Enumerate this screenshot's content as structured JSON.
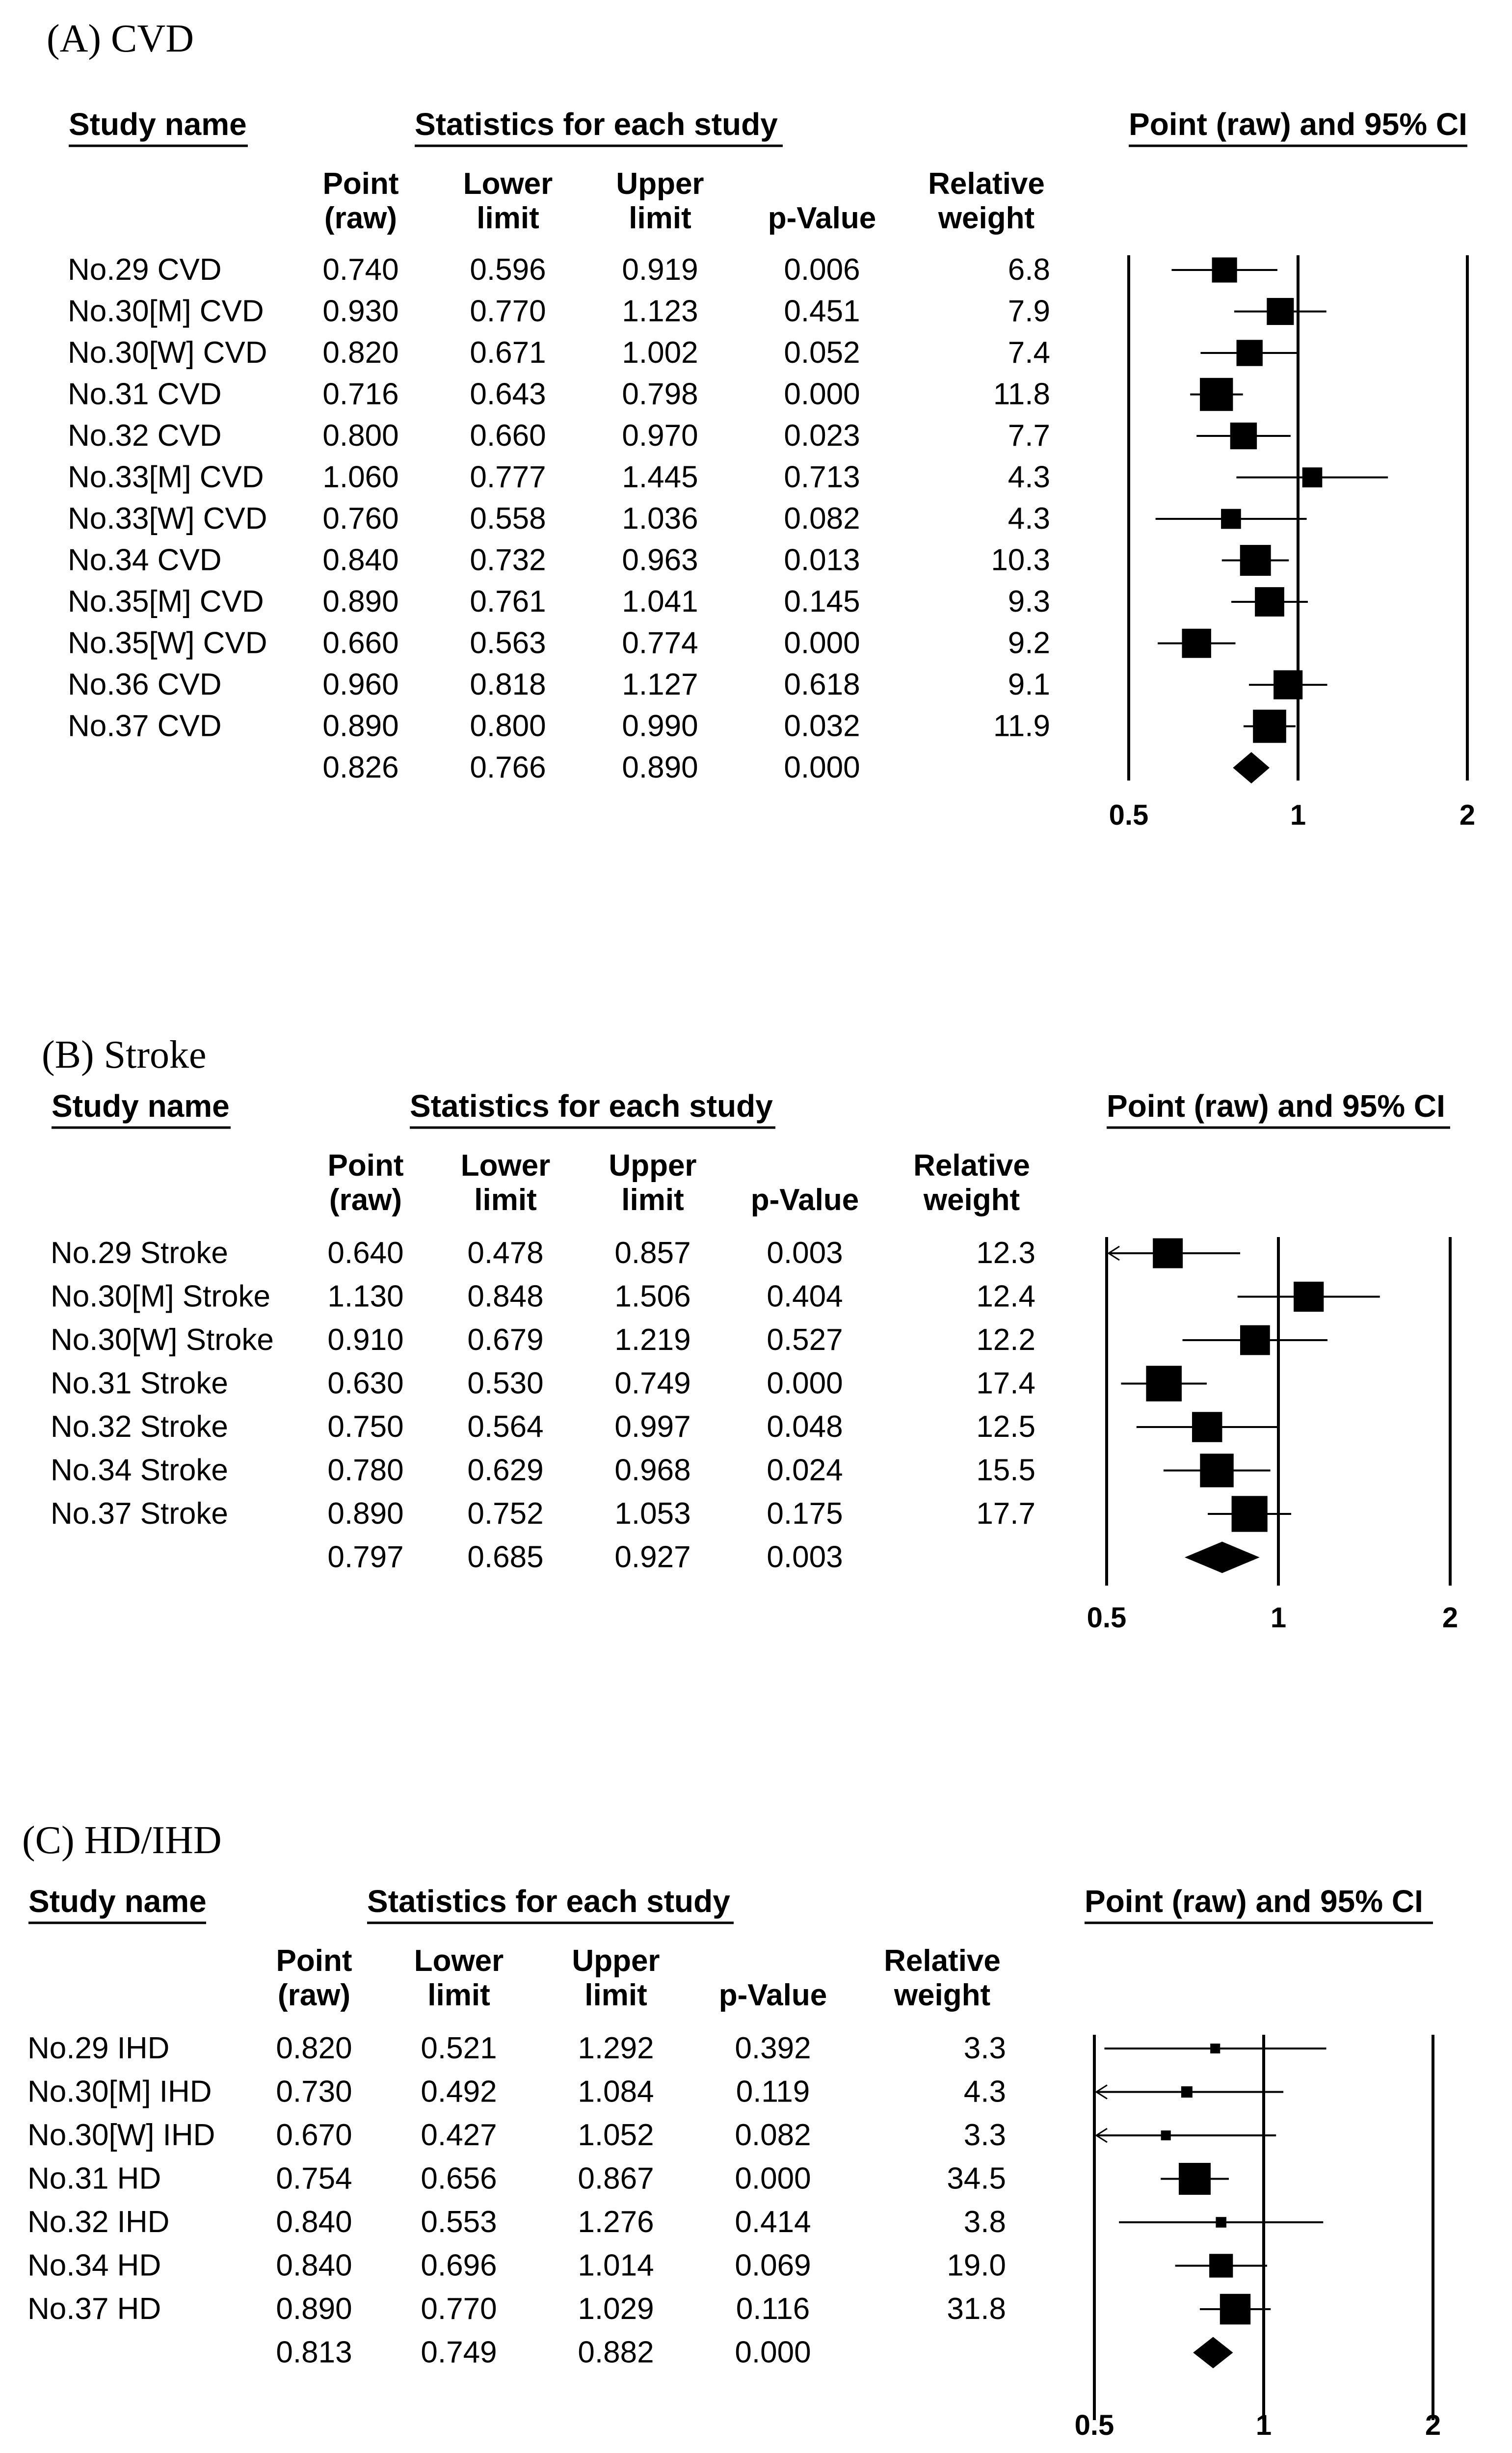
{
  "chart_data": [
    {
      "type": "forest",
      "title": "(A) CVD",
      "header_study": "Study name",
      "header_stats": "Statistics for each study",
      "header_plot": "Point (raw) and 95% CI",
      "columns": [
        {
          "line1": "Point",
          "line2": "(raw)"
        },
        {
          "line1": "Lower",
          "line2": "limit"
        },
        {
          "line1": "Upper",
          "line2": "limit"
        },
        {
          "line1": "",
          "line2": "p-Value"
        },
        {
          "line1": "Relative",
          "line2": "weight"
        }
      ],
      "xaxis": {
        "scale": "log",
        "ticks": [
          "0.5",
          "1",
          "2"
        ],
        "range": [
          0.5,
          2
        ]
      },
      "rows": [
        {
          "study": "No.29 CVD",
          "point": "0.740",
          "lower": "0.596",
          "upper": "0.919",
          "p": "0.006",
          "weight": "6.8"
        },
        {
          "study": "No.30[M] CVD",
          "point": "0.930",
          "lower": "0.770",
          "upper": "1.123",
          "p": "0.451",
          "weight": "7.9"
        },
        {
          "study": "No.30[W] CVD",
          "point": "0.820",
          "lower": "0.671",
          "upper": "1.002",
          "p": "0.052",
          "weight": "7.4"
        },
        {
          "study": "No.31 CVD",
          "point": "0.716",
          "lower": "0.643",
          "upper": "0.798",
          "p": "0.000",
          "weight": "11.8"
        },
        {
          "study": "No.32 CVD",
          "point": "0.800",
          "lower": "0.660",
          "upper": "0.970",
          "p": "0.023",
          "weight": "7.7"
        },
        {
          "study": "No.33[M] CVD",
          "point": "1.060",
          "lower": "0.777",
          "upper": "1.445",
          "p": "0.713",
          "weight": "4.3"
        },
        {
          "study": "No.33[W] CVD",
          "point": "0.760",
          "lower": "0.558",
          "upper": "1.036",
          "p": "0.082",
          "weight": "4.3"
        },
        {
          "study": "No.34 CVD",
          "point": "0.840",
          "lower": "0.732",
          "upper": "0.963",
          "p": "0.013",
          "weight": "10.3"
        },
        {
          "study": "No.35[M] CVD",
          "point": "0.890",
          "lower": "0.761",
          "upper": "1.041",
          "p": "0.145",
          "weight": "9.3"
        },
        {
          "study": "No.35[W] CVD",
          "point": "0.660",
          "lower": "0.563",
          "upper": "0.774",
          "p": "0.000",
          "weight": "9.2"
        },
        {
          "study": "No.36 CVD",
          "point": "0.960",
          "lower": "0.818",
          "upper": "1.127",
          "p": "0.618",
          "weight": "9.1"
        },
        {
          "study": "No.37 CVD",
          "point": "0.890",
          "lower": "0.800",
          "upper": "0.990",
          "p": "0.032",
          "weight": "11.9"
        }
      ],
      "summary": {
        "point": "0.826",
        "lower": "0.766",
        "upper": "0.890",
        "p": "0.000"
      }
    },
    {
      "type": "forest",
      "title": "(B) Stroke",
      "header_study": "Study name",
      "header_stats": "Statistics for each study",
      "header_plot": "Point (raw) and 95% CI",
      "columns": [
        {
          "line1": "Point",
          "line2": "(raw)"
        },
        {
          "line1": "Lower",
          "line2": "limit"
        },
        {
          "line1": "Upper",
          "line2": "limit"
        },
        {
          "line1": "",
          "line2": "p-Value"
        },
        {
          "line1": "Relative",
          "line2": "weight"
        }
      ],
      "xaxis": {
        "scale": "log",
        "ticks": [
          "0.5",
          "1",
          "2"
        ],
        "range": [
          0.5,
          2
        ]
      },
      "rows": [
        {
          "study": "No.29 Stroke",
          "point": "0.640",
          "lower": "0.478",
          "upper": "0.857",
          "p": "0.003",
          "weight": "12.3"
        },
        {
          "study": "No.30[M] Stroke",
          "point": "1.130",
          "lower": "0.848",
          "upper": "1.506",
          "p": "0.404",
          "weight": "12.4"
        },
        {
          "study": "No.30[W] Stroke",
          "point": "0.910",
          "lower": "0.679",
          "upper": "1.219",
          "p": "0.527",
          "weight": "12.2"
        },
        {
          "study": "No.31 Stroke",
          "point": "0.630",
          "lower": "0.530",
          "upper": "0.749",
          "p": "0.000",
          "weight": "17.4"
        },
        {
          "study": "No.32 Stroke",
          "point": "0.750",
          "lower": "0.564",
          "upper": "0.997",
          "p": "0.048",
          "weight": "12.5"
        },
        {
          "study": "No.34 Stroke",
          "point": "0.780",
          "lower": "0.629",
          "upper": "0.968",
          "p": "0.024",
          "weight": "15.5"
        },
        {
          "study": "No.37 Stroke",
          "point": "0.890",
          "lower": "0.752",
          "upper": "1.053",
          "p": "0.175",
          "weight": "17.7"
        }
      ],
      "summary": {
        "point": "0.797",
        "lower": "0.685",
        "upper": "0.927",
        "p": "0.003"
      }
    },
    {
      "type": "forest",
      "title": "(C) HD/IHD",
      "header_study": "Study name",
      "header_stats": "Statistics for each study",
      "header_plot": "Point (raw) and 95% CI",
      "columns": [
        {
          "line1": "Point",
          "line2": "(raw)"
        },
        {
          "line1": "Lower",
          "line2": "limit"
        },
        {
          "line1": "Upper",
          "line2": "limit"
        },
        {
          "line1": "",
          "line2": "p-Value"
        },
        {
          "line1": "Relative",
          "line2": "weight"
        }
      ],
      "xaxis": {
        "scale": "log",
        "ticks": [
          "0.5",
          "1",
          "2"
        ],
        "range": [
          0.5,
          2
        ]
      },
      "rows": [
        {
          "study": "No.29 IHD",
          "point": "0.820",
          "lower": "0.521",
          "upper": "1.292",
          "p": "0.392",
          "weight": "3.3"
        },
        {
          "study": "No.30[M] IHD",
          "point": "0.730",
          "lower": "0.492",
          "upper": "1.084",
          "p": "0.119",
          "weight": "4.3"
        },
        {
          "study": "No.30[W] IHD",
          "point": "0.670",
          "lower": "0.427",
          "upper": "1.052",
          "p": "0.082",
          "weight": "3.3"
        },
        {
          "study": "No.31 HD",
          "point": "0.754",
          "lower": "0.656",
          "upper": "0.867",
          "p": "0.000",
          "weight": "34.5"
        },
        {
          "study": "No.32 IHD",
          "point": "0.840",
          "lower": "0.553",
          "upper": "1.276",
          "p": "0.414",
          "weight": "3.8"
        },
        {
          "study": "No.34 HD",
          "point": "0.840",
          "lower": "0.696",
          "upper": "1.014",
          "p": "0.069",
          "weight": "19.0"
        },
        {
          "study": "No.37 HD",
          "point": "0.890",
          "lower": "0.770",
          "upper": "1.029",
          "p": "0.116",
          "weight": "31.8"
        }
      ],
      "summary": {
        "point": "0.813",
        "lower": "0.749",
        "upper": "0.882",
        "p": "0.000"
      }
    }
  ]
}
